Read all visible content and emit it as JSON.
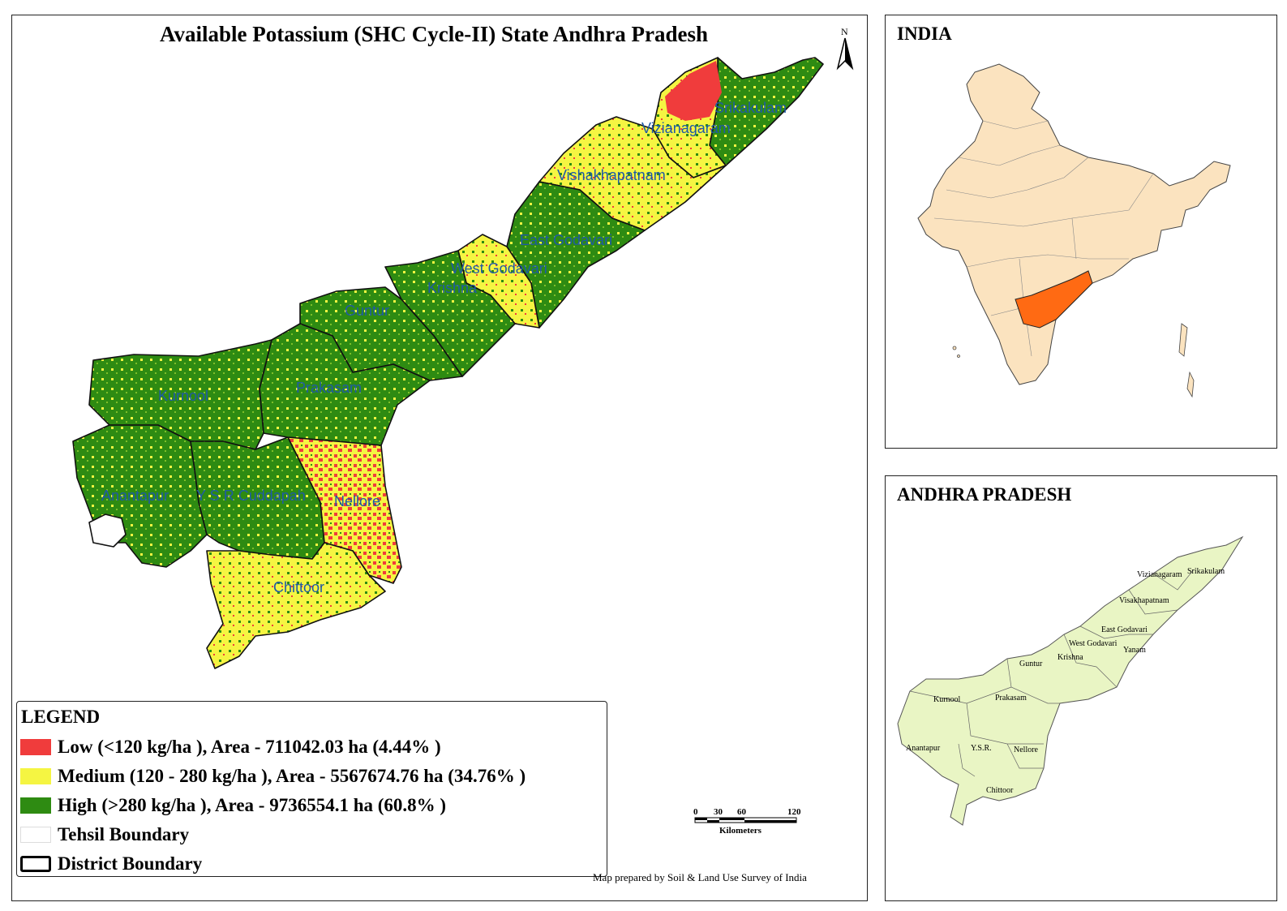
{
  "title": "Available Potassium (SHC Cycle-II) State Andhra Pradesh",
  "north_label": "N",
  "districts": [
    {
      "name": "Srikakulam",
      "class": "High"
    },
    {
      "name": "Vizianagaram",
      "class": "Medium"
    },
    {
      "name": "Vishakhapatnam",
      "class": "Medium"
    },
    {
      "name": "East Godavari",
      "class": "High"
    },
    {
      "name": "West Godavari",
      "class": "Medium"
    },
    {
      "name": "Krishna",
      "class": "High"
    },
    {
      "name": "Guntur",
      "class": "High"
    },
    {
      "name": "Prakasam",
      "class": "High"
    },
    {
      "name": "Kurnool",
      "class": "High"
    },
    {
      "name": "Anantapur",
      "class": "High"
    },
    {
      "name": "Y S R Cuddapah",
      "class": "High"
    },
    {
      "name": "Nellore",
      "class": "Low/Medium"
    },
    {
      "name": "Chittoor",
      "class": "Medium"
    }
  ],
  "legend": {
    "title": "LEGEND",
    "items": [
      {
        "label": "Low  (<120 kg/ha ), Area - 711042.03  ha (4.44% )",
        "color": "#f03c3c"
      },
      {
        "label": "Medium  (120 - 280 kg/ha ), Area - 5567674.76  ha (34.76% )",
        "color": "#f5f542"
      },
      {
        "label": "High  (>280 kg/ha ), Area - 9736554.1  ha (60.8% )",
        "color": "#2e8b12"
      },
      {
        "label": "Tehsil Boundary",
        "color": "#ffffff"
      },
      {
        "label": "District Boundary",
        "color": "#ffffff"
      }
    ]
  },
  "scale_bar": {
    "ticks": [
      "0",
      "30",
      "60",
      "120"
    ],
    "unit": "Kilometers"
  },
  "credit": "Map prepared by Soil & Land Use Survey of India",
  "india_inset": {
    "title": "INDIA",
    "country_color": "#fbe3bf",
    "highlight_color": "#ff6a13"
  },
  "ap_inset": {
    "title": "ANDHRA PRADESH",
    "fill_color": "#e9f5c4",
    "labels": [
      "Srikakulam",
      "Vizianagaram",
      "Visakhapatnam",
      "East Godavari",
      "West Godavari",
      "Yanam",
      "Krishna",
      "Guntur",
      "Prakasam",
      "Kurnool",
      "Anantapur",
      "Y.S.R.",
      "Nellore",
      "Chittoor"
    ]
  }
}
